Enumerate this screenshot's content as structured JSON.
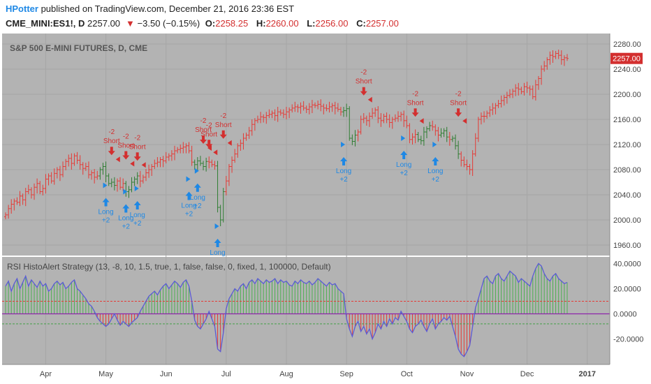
{
  "header": {
    "author": "HPotter",
    "published_text": "published on TradingView.com, December 21, 2016 23:36 EST",
    "symbol": "CME_MINI:ES1!, D",
    "last": "2257.00",
    "change_arrow": "▼",
    "change": "−3.50 (−0.15%)",
    "open_label": "O:",
    "open": "2258.25",
    "high_label": "H:",
    "high": "2260.00",
    "low_label": "L:",
    "low": "2256.00",
    "close_label": "C:",
    "close": "2257.00"
  },
  "chart_data": [
    {
      "type": "ohlc",
      "title": "S&P 500 E-MINI FUTURES, D, CME",
      "y_ticks": [
        1960,
        2000,
        2040,
        2080,
        2120,
        2160,
        2200,
        2240,
        2280
      ],
      "last_price_label": "2257.00",
      "ylim": [
        1950,
        2290
      ],
      "x_labels": [
        "Apr",
        "May",
        "Jun",
        "Jul",
        "Aug",
        "Sep",
        "Oct",
        "Nov",
        "Dec",
        "2017"
      ],
      "x_label_index": [
        14,
        35,
        56,
        77,
        98,
        119,
        140,
        161,
        182,
        203
      ],
      "closes": [
        2008,
        2018,
        2025,
        2030,
        2028,
        2038,
        2032,
        2045,
        2048,
        2040,
        2052,
        2058,
        2045,
        2050,
        2065,
        2070,
        2062,
        2074,
        2080,
        2072,
        2085,
        2093,
        2098,
        2090,
        2102,
        2095,
        2088,
        2082,
        2085,
        2072,
        2075,
        2068,
        2070,
        2080,
        2085,
        2070,
        2058,
        2060,
        2055,
        2062,
        2052,
        2058,
        2045,
        2048,
        2060,
        2065,
        2070,
        2062,
        2068,
        2075,
        2080,
        2085,
        2090,
        2092,
        2096,
        2094,
        2100,
        2102,
        2105,
        2110,
        2112,
        2114,
        2116,
        2118,
        2110,
        2092,
        2088,
        2094,
        2090,
        2085,
        2093,
        2092,
        2088,
        2086,
        2020,
        2000,
        2045,
        2062,
        2085,
        2095,
        2105,
        2118,
        2122,
        2130,
        2135,
        2142,
        2152,
        2158,
        2160,
        2164,
        2163,
        2166,
        2168,
        2170,
        2166,
        2172,
        2170,
        2168,
        2172,
        2175,
        2178,
        2180,
        2179,
        2181,
        2178,
        2176,
        2180,
        2183,
        2182,
        2184,
        2181,
        2178,
        2177,
        2180,
        2182,
        2178,
        2176,
        2172,
        2174,
        2177,
        2130,
        2125,
        2135,
        2140,
        2160,
        2162,
        2158,
        2165,
        2170,
        2175,
        2162,
        2158,
        2165,
        2160,
        2155,
        2160,
        2162,
        2165,
        2168,
        2158,
        2150,
        2128,
        2132,
        2136,
        2128,
        2126,
        2140,
        2145,
        2150,
        2148,
        2142,
        2135,
        2138,
        2142,
        2132,
        2128,
        2130,
        2118,
        2105,
        2095,
        2088,
        2085,
        2080,
        2105,
        2130,
        2160,
        2165,
        2165,
        2170,
        2175,
        2178,
        2182,
        2185,
        2190,
        2195,
        2198,
        2200,
        2205,
        2210,
        2208,
        2204,
        2212,
        2210,
        2208,
        2196,
        2215,
        2225,
        2240,
        2245,
        2255,
        2262,
        2260,
        2265,
        2262,
        2255,
        2258,
        2257
      ],
      "down_bar_ranges": [
        [
          33,
          38
        ],
        [
          42,
          46
        ],
        [
          66,
          70
        ],
        [
          74,
          76
        ],
        [
          118,
          122
        ],
        [
          144,
          148
        ],
        [
          152,
          154
        ],
        [
          156,
          158
        ]
      ],
      "short_signals": [
        {
          "i": 37,
          "price": 2092,
          "label": "Short",
          "qty": "-2"
        },
        {
          "i": 42,
          "price": 2085,
          "label": "Short",
          "qty": "-2"
        },
        {
          "i": 46,
          "price": 2083,
          "label": "Short",
          "qty": "-2"
        },
        {
          "i": 69,
          "price": 2110,
          "label": "Short",
          "qty": "-2"
        },
        {
          "i": 71,
          "price": 2103,
          "label": "Short",
          "qty": "-2"
        },
        {
          "i": 76,
          "price": 2118,
          "label": "Short",
          "qty": "-2"
        },
        {
          "i": 125,
          "price": 2187,
          "label": "Short",
          "qty": "-2"
        },
        {
          "i": 143,
          "price": 2153,
          "label": "Short",
          "qty": "-2"
        },
        {
          "i": 158,
          "price": 2153,
          "label": "Short",
          "qty": "-2"
        }
      ],
      "long_signals": [
        {
          "i": 35,
          "price": 2035,
          "label": "Long",
          "qty": "+2"
        },
        {
          "i": 42,
          "price": 2025,
          "label": "Long",
          "qty": "+2"
        },
        {
          "i": 46,
          "price": 2030,
          "label": "Long",
          "qty": "+2"
        },
        {
          "i": 64,
          "price": 2045,
          "label": "Long",
          "qty": "+2"
        },
        {
          "i": 67,
          "price": 2058,
          "label": "Long",
          "qty": "+2"
        },
        {
          "i": 74,
          "price": 1970,
          "label": "Long",
          "qty": ""
        },
        {
          "i": 118,
          "price": 2100,
          "label": "Long",
          "qty": "+2"
        },
        {
          "i": 139,
          "price": 2110,
          "label": "Long",
          "qty": "+2"
        },
        {
          "i": 150,
          "price": 2100,
          "label": "Long",
          "qty": "+2"
        }
      ]
    },
    {
      "type": "histogram",
      "title": "RSI HistoAlert Strategy (13, -8, 10, 1.5, true, 1, false, false, 0, fixed, 1, 100000, Default)",
      "y_ticks": [
        -20,
        0,
        20,
        40
      ],
      "ylim": [
        -38,
        43
      ],
      "upper_level": 10,
      "lower_level": -8,
      "values": [
        22,
        26,
        18,
        24,
        28,
        20,
        25,
        30,
        22,
        27,
        24,
        21,
        26,
        22,
        24,
        18,
        20,
        24,
        26,
        23,
        25,
        20,
        22,
        25,
        27,
        20,
        18,
        15,
        12,
        8,
        6,
        2,
        -3,
        -6,
        -8,
        -10,
        -8,
        -4,
        0,
        -5,
        -9,
        -6,
        -8,
        -10,
        -7,
        -5,
        -3,
        2,
        6,
        10,
        14,
        16,
        18,
        15,
        19,
        22,
        24,
        20,
        23,
        26,
        24,
        21,
        25,
        27,
        22,
        10,
        -5,
        -10,
        -12,
        -8,
        -4,
        2,
        -4,
        -10,
        -28,
        -30,
        -15,
        4,
        12,
        16,
        20,
        18,
        22,
        24,
        20,
        25,
        27,
        24,
        28,
        26,
        24,
        27,
        25,
        26,
        28,
        24,
        27,
        25,
        26,
        23,
        22,
        26,
        24,
        27,
        25,
        24,
        26,
        23,
        25,
        28,
        26,
        24,
        22,
        25,
        23,
        24,
        20,
        18,
        16,
        -4,
        -12,
        -18,
        -10,
        -6,
        -14,
        -10,
        -16,
        -12,
        -20,
        -15,
        -8,
        -12,
        -6,
        -10,
        -4,
        -8,
        -3,
        -5,
        2,
        -2,
        -6,
        -12,
        -15,
        -10,
        -8,
        -5,
        -10,
        -14,
        -8,
        -4,
        -12,
        -8,
        -6,
        -3,
        -5,
        -2,
        -10,
        -18,
        -28,
        -32,
        -34,
        -30,
        -25,
        -10,
        5,
        12,
        20,
        28,
        30,
        26,
        24,
        30,
        32,
        28,
        26,
        30,
        34,
        32,
        30,
        25,
        28,
        26,
        24,
        22,
        30,
        36,
        40,
        38,
        32,
        28,
        26,
        30,
        32,
        28,
        26,
        24,
        25
      ],
      "colors": {
        "positive": "#4caf50",
        "negative": "#e53935",
        "line": "#5b5bd6",
        "upper_level": "#e53935",
        "lower_level": "#43a047",
        "zero_line": "#8e24aa"
      }
    }
  ]
}
